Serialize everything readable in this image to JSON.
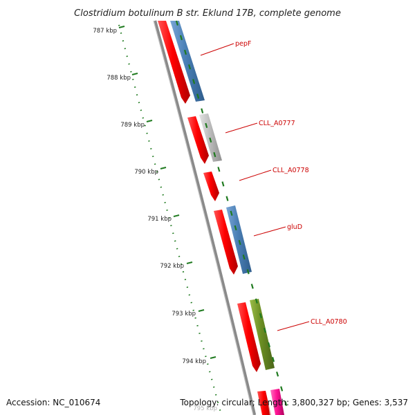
{
  "title": "Clostridium botulinum B str. Eklund 17B, complete genome",
  "footer": {
    "accession": "Accession: NC_010674",
    "summary": "Topology: circular; Length: 3,800,327 bp; Genes: 3,537"
  },
  "ruler_ticks": [
    "787 kbp",
    "788 kbp",
    "789 kbp",
    "790 kbp",
    "791 kbp",
    "792 kbp",
    "793 kbp",
    "794 kbp",
    "795 kbp"
  ],
  "gene_labels": [
    "pepF",
    "CLL_A0777",
    "CLL_A0778",
    "gluD",
    "CLL_A0780"
  ],
  "colors": {
    "backbone": "#8a8a8a",
    "ruler": "#1f7a1f",
    "red_feature": "#ff0000",
    "cds_blue": "#4a7fb5",
    "cds_grey": "#bdbdbd",
    "cds_green": "#6b8e23",
    "cds_magenta": "#ff1493",
    "label": "#cc0000"
  }
}
